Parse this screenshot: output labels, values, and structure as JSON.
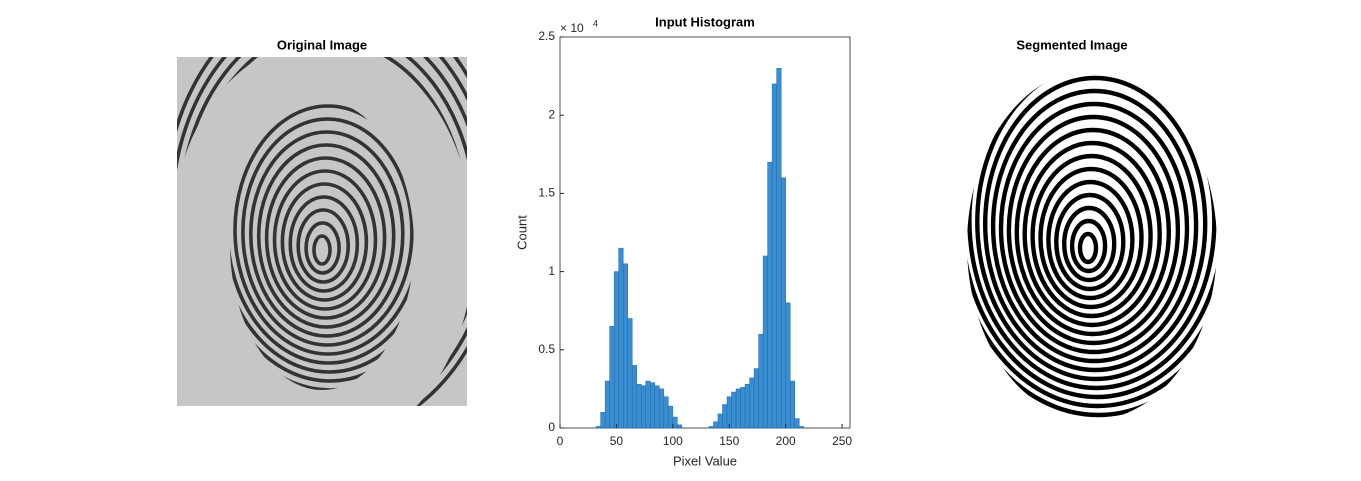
{
  "chart_data": [
    {
      "type": "image",
      "title": "Original Image"
    },
    {
      "type": "histogram",
      "title": "Input Histogram",
      "xlabel": "Pixel Value",
      "ylabel": "Count",
      "y_multiplier": {
        "base": "× 10",
        "exponent": 4
      },
      "color": "#3a8dd0",
      "edge_color": "#1c6aab",
      "bins": [
        32,
        36,
        40,
        44,
        48,
        52,
        56,
        60,
        64,
        68,
        72,
        76,
        80,
        84,
        88,
        92,
        96,
        100,
        104,
        108,
        112,
        116,
        120,
        124,
        128,
        132,
        136,
        140,
        144,
        148,
        152,
        156,
        160,
        164,
        168,
        172,
        176,
        180,
        184,
        188,
        192,
        196,
        200,
        204,
        208,
        212,
        216
      ],
      "values": [
        0.01,
        0.1,
        0.3,
        0.65,
        1.0,
        1.15,
        1.05,
        0.7,
        0.4,
        0.28,
        0.27,
        0.3,
        0.29,
        0.27,
        0.25,
        0.2,
        0.14,
        0.07,
        0.02,
        0,
        0,
        0,
        0,
        0,
        0,
        0.01,
        0.04,
        0.09,
        0.15,
        0.2,
        0.23,
        0.25,
        0.26,
        0.28,
        0.32,
        0.38,
        0.6,
        1.1,
        1.7,
        2.2,
        2.3,
        1.6,
        0.8,
        0.3,
        0.06,
        0.01
      ],
      "xlim": [
        0,
        257
      ],
      "ylim": [
        0,
        2.5
      ],
      "xticks": [
        0,
        50,
        100,
        150,
        200,
        250
      ],
      "yticks": [
        0,
        {
          "value": 0.5,
          "label": "0.5"
        },
        1,
        {
          "value": 1.5,
          "label": "1.5"
        },
        2,
        {
          "value": 2.5,
          "label": "2.5"
        }
      ]
    },
    {
      "type": "image",
      "title": "Segmented Image"
    }
  ]
}
